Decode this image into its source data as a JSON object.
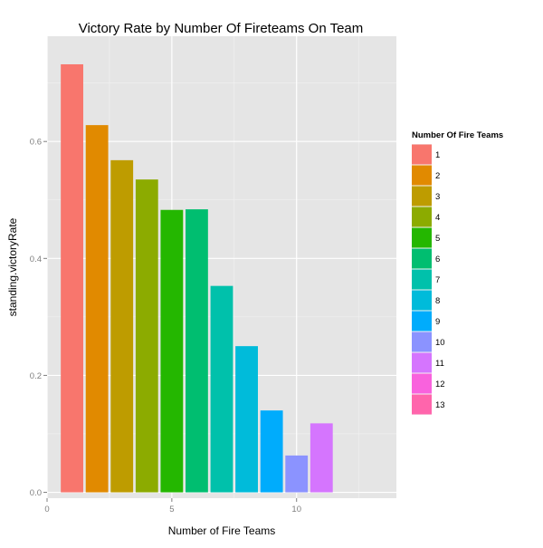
{
  "chart_data": {
    "type": "bar",
    "title": "Victory Rate by Number Of Fireteams On Team",
    "xlabel": "Number of Fire Teams",
    "ylabel": "standing.victoryRate",
    "xlim": [
      0,
      14
    ],
    "ylim": [
      -0.01,
      0.78
    ],
    "x_ticks": [
      0,
      5,
      10
    ],
    "y_ticks": [
      0.0,
      0.2,
      0.4,
      0.6
    ],
    "y_tick_labels": [
      "0.0",
      "0.2",
      "0.4",
      "0.6"
    ],
    "grid": true,
    "legend_position": "right",
    "legend_title": "Number Of Fire Teams",
    "categories": [
      "1",
      "2",
      "3",
      "4",
      "5",
      "6",
      "7",
      "8",
      "9",
      "10",
      "11",
      "12",
      "13"
    ],
    "x": [
      1,
      2,
      3,
      4,
      5,
      6,
      7,
      8,
      9,
      10,
      11,
      12,
      13
    ],
    "values": [
      0.732,
      0.628,
      0.568,
      0.535,
      0.483,
      0.484,
      0.353,
      0.25,
      0.14,
      0.063,
      0.118,
      null,
      null
    ],
    "colors": [
      "#F8766D",
      "#E18A00",
      "#BE9C00",
      "#8CAB00",
      "#24B700",
      "#00BE70",
      "#00C1AB",
      "#00BBDA",
      "#00ACFC",
      "#8B93FF",
      "#D575FE",
      "#F962DD",
      "#FF65AC"
    ]
  }
}
